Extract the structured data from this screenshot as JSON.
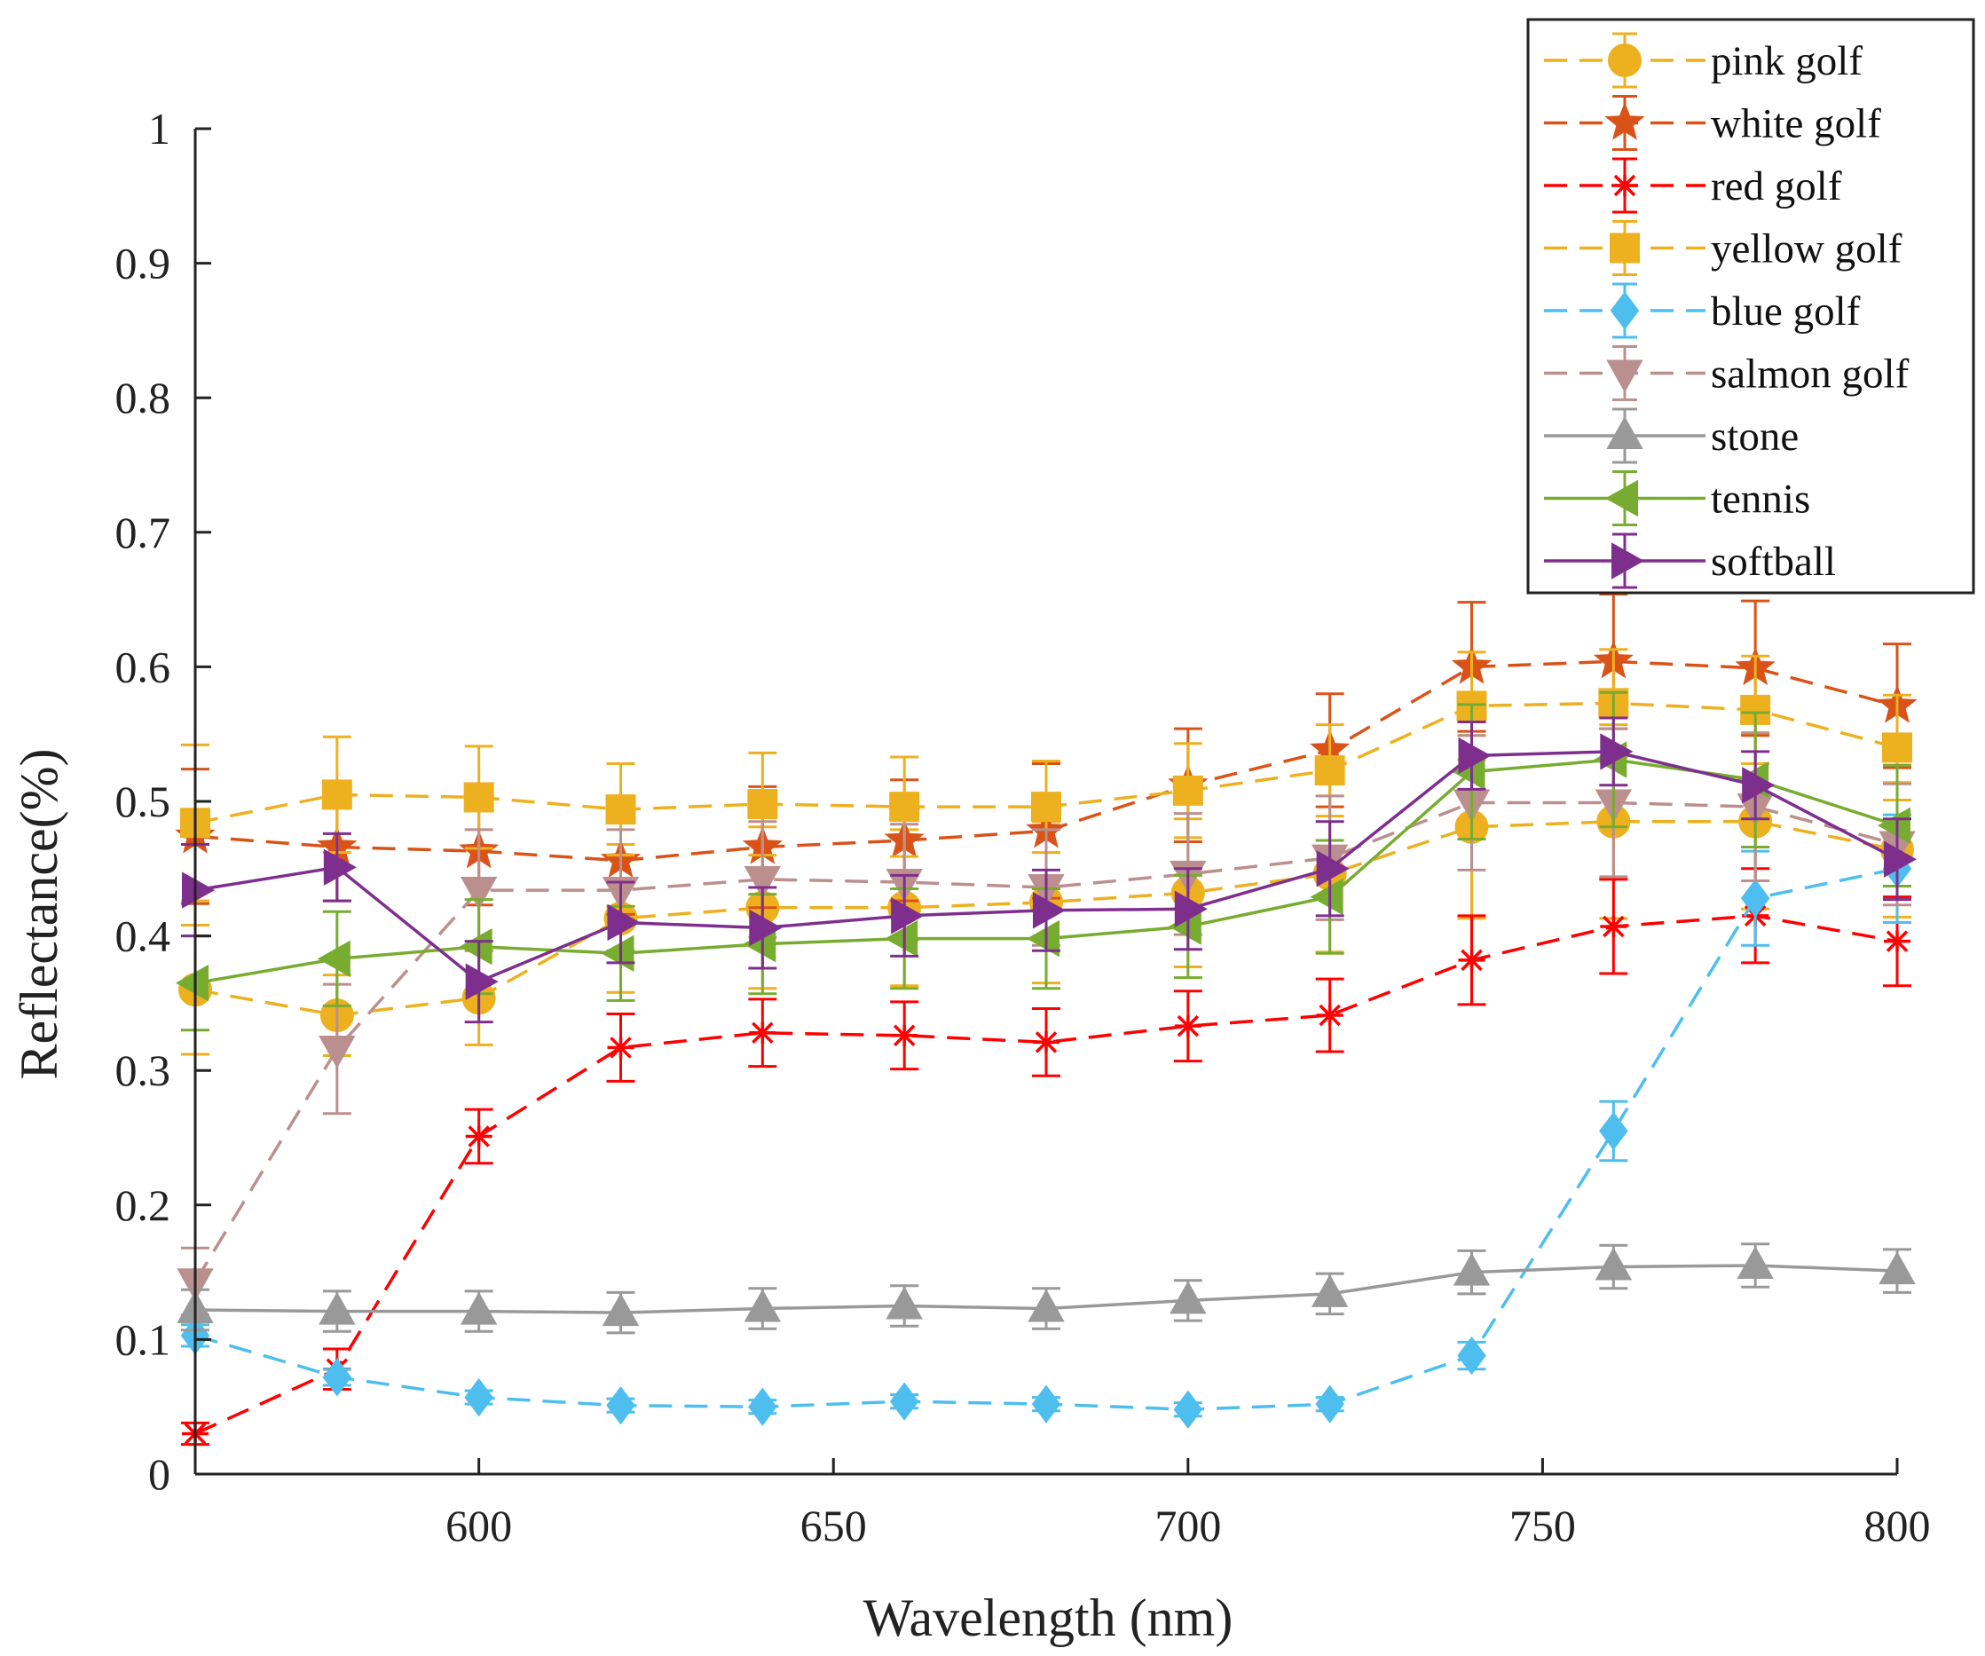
{
  "chart_data": {
    "type": "line",
    "title": "",
    "xlabel": "Wavelength (nm)",
    "ylabel": "Reflectance(%)",
    "xlim": [
      560,
      800
    ],
    "ylim": [
      0,
      1
    ],
    "xticks": [
      600,
      650,
      700,
      750,
      800
    ],
    "yticks": [
      0,
      0.1,
      0.2,
      0.3,
      0.4,
      0.5,
      0.6,
      0.7,
      0.8,
      0.9,
      1
    ],
    "ytick_labels": [
      "0",
      "0.1",
      "0.2",
      "0.3",
      "0.4",
      "0.5",
      "0.6",
      "0.7",
      "0.8",
      "0.9",
      "1"
    ],
    "grid": false,
    "legend_position": "top-right",
    "x": [
      560,
      580,
      600,
      620,
      640,
      660,
      680,
      700,
      720,
      740,
      760,
      780,
      800
    ],
    "series": [
      {
        "name": "pink golf",
        "color": "#EDB120",
        "dash": "dashed",
        "marker": "circle",
        "values": [
          0.36,
          0.341,
          0.354,
          0.413,
          0.421,
          0.421,
          0.425,
          0.432,
          0.446,
          0.481,
          0.485,
          0.485,
          0.464
        ],
        "error": [
          0.048,
          0.03,
          0.035,
          0.055,
          0.06,
          0.058,
          0.06,
          0.055,
          0.058,
          0.068,
          0.072,
          0.065,
          0.05
        ]
      },
      {
        "name": "white golf",
        "color": "#D95319",
        "dash": "dashed",
        "marker": "star",
        "values": [
          0.474,
          0.466,
          0.463,
          0.456,
          0.466,
          0.471,
          0.478,
          0.512,
          0.538,
          0.6,
          0.604,
          0.599,
          0.571
        ],
        "error": [
          0.05,
          0.04,
          0.04,
          0.04,
          0.045,
          0.045,
          0.05,
          0.042,
          0.042,
          0.048,
          0.05,
          0.05,
          0.046
        ]
      },
      {
        "name": "red golf",
        "color": "#FF0000",
        "dash": "dashed",
        "marker": "asterisk",
        "values": [
          0.03,
          0.078,
          0.251,
          0.317,
          0.328,
          0.326,
          0.321,
          0.333,
          0.341,
          0.382,
          0.407,
          0.415,
          0.396
        ],
        "error": [
          0.008,
          0.015,
          0.02,
          0.025,
          0.025,
          0.025,
          0.025,
          0.026,
          0.027,
          0.033,
          0.035,
          0.035,
          0.033
        ]
      },
      {
        "name": "yellow golf",
        "color": "#EDB120",
        "dash": "dashed",
        "marker": "square",
        "values": [
          0.484,
          0.505,
          0.503,
          0.494,
          0.498,
          0.496,
          0.496,
          0.508,
          0.523,
          0.571,
          0.573,
          0.568,
          0.54
        ],
        "error": [
          0.058,
          0.043,
          0.038,
          0.034,
          0.038,
          0.037,
          0.034,
          0.035,
          0.034,
          0.04,
          0.04,
          0.04,
          0.039
        ]
      },
      {
        "name": "blue golf",
        "color": "#4DBEEE",
        "dash": "dashed",
        "marker": "diamond",
        "values": [
          0.103,
          0.072,
          0.057,
          0.051,
          0.05,
          0.054,
          0.052,
          0.048,
          0.052,
          0.088,
          0.255,
          0.428,
          0.45
        ],
        "error": [
          0.008,
          0.006,
          0.005,
          0.005,
          0.005,
          0.005,
          0.005,
          0.005,
          0.005,
          0.01,
          0.022,
          0.035,
          0.04
        ]
      },
      {
        "name": "salmon golf",
        "color": "#BC8F8F",
        "dash": "dashed",
        "marker": "triangle-down",
        "values": [
          0.143,
          0.316,
          0.434,
          0.434,
          0.442,
          0.44,
          0.436,
          0.446,
          0.458,
          0.499,
          0.499,
          0.496,
          0.468
        ],
        "error": [
          0.025,
          0.048,
          0.045,
          0.045,
          0.043,
          0.043,
          0.043,
          0.045,
          0.046,
          0.05,
          0.055,
          0.055,
          0.045
        ]
      },
      {
        "name": "stone",
        "color": "#999999",
        "dash": "solid",
        "marker": "triangle-up",
        "values": [
          0.122,
          0.121,
          0.121,
          0.12,
          0.123,
          0.125,
          0.123,
          0.129,
          0.134,
          0.15,
          0.154,
          0.155,
          0.151
        ],
        "error": [
          0.015,
          0.015,
          0.015,
          0.015,
          0.015,
          0.015,
          0.015,
          0.015,
          0.015,
          0.016,
          0.016,
          0.016,
          0.016
        ]
      },
      {
        "name": "tennis",
        "color": "#77AC30",
        "dash": "solid",
        "marker": "triangle-left",
        "values": [
          0.365,
          0.383,
          0.392,
          0.387,
          0.394,
          0.398,
          0.398,
          0.407,
          0.429,
          0.522,
          0.531,
          0.516,
          0.482
        ],
        "error": [
          0.035,
          0.035,
          0.035,
          0.035,
          0.037,
          0.037,
          0.037,
          0.038,
          0.042,
          0.05,
          0.05,
          0.05,
          0.045
        ]
      },
      {
        "name": "softball",
        "color": "#7E2F8E",
        "dash": "solid",
        "marker": "triangle-right",
        "values": [
          0.434,
          0.451,
          0.366,
          0.41,
          0.406,
          0.415,
          0.419,
          0.42,
          0.45,
          0.534,
          0.537,
          0.512,
          0.457
        ],
        "error": [
          0.034,
          0.025,
          0.03,
          0.03,
          0.03,
          0.03,
          0.03,
          0.03,
          0.035,
          0.025,
          0.025,
          0.025,
          0.03
        ]
      }
    ]
  }
}
